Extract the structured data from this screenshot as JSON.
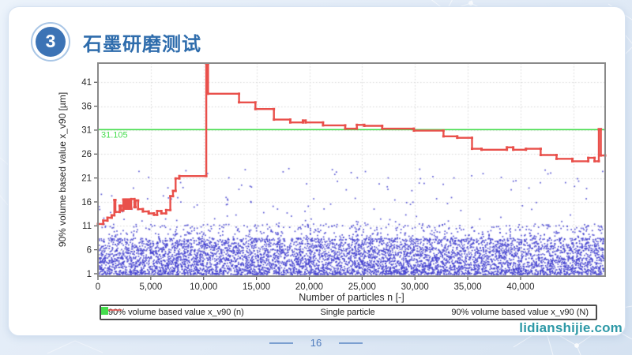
{
  "slide": {
    "badge_number": "3",
    "title": "石墨研磨测试",
    "page_number": "16",
    "watermark": "lidianshijie.com"
  },
  "colors": {
    "title_blue": "#2e6cac",
    "badge_fill": "#3c73b5",
    "page_number_blue": "#4f7cbd",
    "watermark_teal": "#2e99a7",
    "background_blue": "#dce7f5"
  },
  "chart_data": {
    "type": "scatter",
    "subtype": "scatter with step line and constant reference line",
    "xlabel": "Number of particles n [-]",
    "ylabel": "90% volume based value x_v90 [µm]",
    "xlim": [
      0,
      48000
    ],
    "ylim": [
      0.5,
      45
    ],
    "grid": "dotted",
    "grid_color": "#d8d8d8",
    "frame_color": "#8a8a8a",
    "text_color": "#2a2a2a",
    "x_ticks": [
      0,
      5000,
      10000,
      15000,
      20000,
      25000,
      30000,
      35000,
      40000
    ],
    "x_tick_labels": [
      "0",
      "5,000",
      "10,000",
      "15,000",
      "20,000",
      "25,000",
      "30,000",
      "35,000",
      "40,000"
    ],
    "x_gridlines": [
      5000,
      10000,
      15000,
      20000,
      25000,
      30000,
      35000,
      40000,
      45000
    ],
    "y_ticks": [
      1,
      6,
      11,
      16,
      21,
      26,
      31,
      36,
      41
    ],
    "y_tick_labels": [
      "1",
      "6",
      "11",
      "16",
      "21",
      "26",
      "31",
      "36",
      "41"
    ],
    "legend": [
      "90% volume based value x_v90 (n)",
      "Single particle",
      "90% volume based value x_v90 (N)"
    ],
    "legend_position": "bottom",
    "reference_line": {
      "value": 31.105,
      "label": "31.105",
      "color": "#46dd4e",
      "series_name": "90% volume based value x_v90 (N)"
    },
    "step_series": {
      "name": "90% volume based value x_v90 (n)",
      "color": "#e9504b",
      "points": [
        [
          0,
          11.4
        ],
        [
          500,
          11.4
        ],
        [
          500,
          12.1
        ],
        [
          900,
          12.1
        ],
        [
          900,
          12.7
        ],
        [
          1300,
          12.7
        ],
        [
          1300,
          13.2
        ],
        [
          1550,
          13.2
        ],
        [
          1550,
          16.4
        ],
        [
          1650,
          16.4
        ],
        [
          1650,
          13.9
        ],
        [
          2050,
          13.9
        ],
        [
          2050,
          15.2
        ],
        [
          2200,
          15.2
        ],
        [
          2200,
          14.2
        ],
        [
          2400,
          14.2
        ],
        [
          2400,
          16.5
        ],
        [
          2550,
          16.5
        ],
        [
          2550,
          14.6
        ],
        [
          2650,
          14.6
        ],
        [
          2650,
          16.5
        ],
        [
          2800,
          16.5
        ],
        [
          2800,
          14.6
        ],
        [
          2900,
          14.6
        ],
        [
          2900,
          16.5
        ],
        [
          3050,
          16.5
        ],
        [
          3050,
          14.6
        ],
        [
          3150,
          14.6
        ],
        [
          3150,
          16.6
        ],
        [
          3450,
          16.6
        ],
        [
          3450,
          14.9
        ],
        [
          3550,
          14.9
        ],
        [
          3550,
          16.3
        ],
        [
          3800,
          16.3
        ],
        [
          3800,
          14.5
        ],
        [
          4250,
          14.5
        ],
        [
          4250,
          14.0
        ],
        [
          4800,
          14.0
        ],
        [
          4800,
          13.6
        ],
        [
          5300,
          13.6
        ],
        [
          5300,
          13.3
        ],
        [
          5600,
          13.3
        ],
        [
          5600,
          14.1
        ],
        [
          6000,
          14.1
        ],
        [
          6000,
          13.6
        ],
        [
          6450,
          13.6
        ],
        [
          6450,
          14.3
        ],
        [
          6850,
          14.3
        ],
        [
          6850,
          17.2
        ],
        [
          7100,
          17.2
        ],
        [
          7100,
          18.3
        ],
        [
          7350,
          18.3
        ],
        [
          7350,
          20.9
        ],
        [
          7700,
          20.9
        ],
        [
          7700,
          21.4
        ],
        [
          10250,
          21.4
        ],
        [
          10250,
          44.9
        ],
        [
          10420,
          44.9
        ],
        [
          10420,
          38.6
        ],
        [
          13350,
          38.6
        ],
        [
          13350,
          36.8
        ],
        [
          14900,
          36.8
        ],
        [
          14900,
          35.4
        ],
        [
          16650,
          35.4
        ],
        [
          16650,
          33.2
        ],
        [
          18200,
          33.2
        ],
        [
          18200,
          32.6
        ],
        [
          19400,
          32.6
        ],
        [
          19400,
          33.0
        ],
        [
          19650,
          33.0
        ],
        [
          19650,
          32.6
        ],
        [
          21300,
          32.6
        ],
        [
          21300,
          32.0
        ],
        [
          23400,
          32.0
        ],
        [
          23400,
          31.3
        ],
        [
          24500,
          31.3
        ],
        [
          24500,
          32.1
        ],
        [
          25200,
          32.1
        ],
        [
          25200,
          31.9
        ],
        [
          26900,
          31.9
        ],
        [
          26900,
          31.3
        ],
        [
          29900,
          31.3
        ],
        [
          29900,
          30.9
        ],
        [
          32700,
          30.9
        ],
        [
          32700,
          29.7
        ],
        [
          34000,
          29.7
        ],
        [
          34000,
          29.4
        ],
        [
          35400,
          29.4
        ],
        [
          35400,
          27.1
        ],
        [
          36300,
          27.1
        ],
        [
          36300,
          26.9
        ],
        [
          38700,
          26.9
        ],
        [
          38700,
          27.4
        ],
        [
          39300,
          27.4
        ],
        [
          39300,
          26.9
        ],
        [
          40500,
          26.9
        ],
        [
          40500,
          27.1
        ],
        [
          41900,
          27.1
        ],
        [
          41900,
          25.8
        ],
        [
          43400,
          25.8
        ],
        [
          43400,
          25.0
        ],
        [
          44900,
          25.0
        ],
        [
          44900,
          24.5
        ],
        [
          46400,
          24.5
        ],
        [
          46400,
          25.2
        ],
        [
          47000,
          25.2
        ],
        [
          47000,
          24.5
        ],
        [
          47400,
          24.5
        ],
        [
          47400,
          31.2
        ],
        [
          47600,
          31.2
        ],
        [
          47600,
          25.7
        ],
        [
          48000,
          25.7
        ]
      ]
    },
    "scatter_series": {
      "name": "Single particle",
      "color": "#4341cf",
      "marker_size_px": 1.7,
      "approximation": {
        "note": "dense unlabeled noise cloud approximated procedurally",
        "count": 6800,
        "seed": 7,
        "x_range": [
          0,
          48000
        ],
        "bands": [
          {
            "weight": 0.9,
            "y_min": 0.8,
            "y_max": 8.4,
            "bias_power": 1.3
          },
          {
            "weight": 0.08,
            "y_min": 8.0,
            "y_max": 11.4,
            "bias_power": 1
          },
          {
            "weight": 0.02,
            "y_min": 10.5,
            "y_max": 23.0,
            "bias_power": 1
          }
        ]
      }
    }
  }
}
